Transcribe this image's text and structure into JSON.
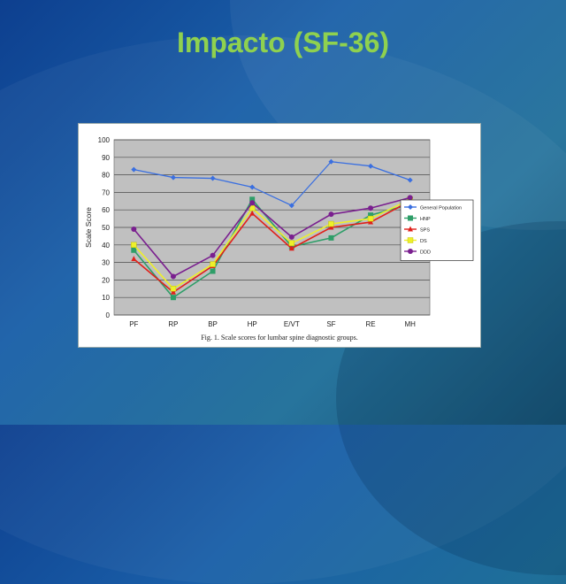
{
  "slide": {
    "title": "Impacto (SF-36)"
  },
  "figure": {
    "caption": "Fig. 1.  Scale scores for lumbar spine diagnostic groups."
  },
  "chart_data": {
    "type": "line",
    "categories": [
      "PF",
      "RP",
      "BP",
      "HP",
      "E/VT",
      "SF",
      "RE",
      "MH"
    ],
    "ylabel": "Scale Score",
    "xlabel": "",
    "ylim": [
      0,
      100
    ],
    "yticks": [
      0,
      10,
      20,
      30,
      40,
      50,
      60,
      70,
      80,
      90,
      100
    ],
    "grid": true,
    "legend_position": "right",
    "series": [
      {
        "name": "General Population",
        "color": "#3a6fe0",
        "marker": "diamond",
        "values": [
          83,
          78.5,
          78,
          73,
          62.5,
          87.5,
          85,
          77
        ]
      },
      {
        "name": "HNP",
        "color": "#2e9e68",
        "marker": "square",
        "values": [
          37,
          10,
          25,
          66,
          39,
          44,
          57,
          63
        ]
      },
      {
        "name": "SPS",
        "color": "#e0201a",
        "marker": "triangle",
        "values": [
          32,
          13,
          28,
          58,
          38,
          50,
          53,
          65
        ]
      },
      {
        "name": "DS",
        "color": "#eef02a",
        "marker": "x",
        "values": [
          40,
          15,
          29,
          61,
          41,
          52,
          55,
          66
        ]
      },
      {
        "name": "DDD",
        "color": "#7a1f8f",
        "marker": "circle",
        "values": [
          49,
          22,
          34,
          64,
          44.5,
          57.5,
          61,
          67
        ]
      }
    ]
  }
}
